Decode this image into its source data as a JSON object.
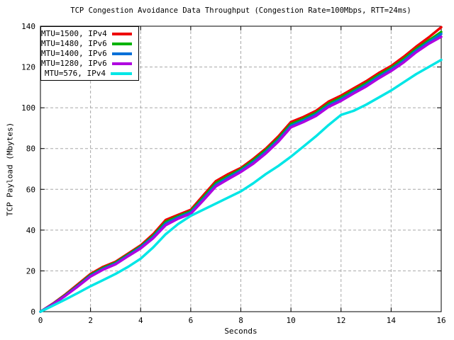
{
  "chart_data": {
    "type": "line",
    "title": "TCP Congestion Avoidance Data Throughput (Congestion Rate=100Mbps, RTT=24ms)",
    "xlabel": "Seconds",
    "ylabel": "TCP Payload (Mbytes)",
    "xlim": [
      0,
      16
    ],
    "ylim": [
      0,
      140
    ],
    "xticks": [
      0,
      2,
      4,
      6,
      8,
      10,
      12,
      14,
      16
    ],
    "yticks": [
      0,
      20,
      40,
      60,
      80,
      100,
      120,
      140
    ],
    "grid": true,
    "grid_color": "#a8a8a8",
    "legend_position": "top-left",
    "x": [
      0,
      0.5,
      1,
      1.5,
      2,
      2.5,
      3,
      3.5,
      4,
      4.5,
      5,
      5.5,
      6,
      6.5,
      7,
      7.5,
      8,
      8.5,
      9,
      9.5,
      10,
      10.5,
      11,
      11.5,
      12,
      12.5,
      13,
      13.5,
      14,
      14.5,
      15,
      15.5,
      16
    ],
    "series": [
      {
        "name": "MTU=1500, IPv4",
        "color": "#ee0000",
        "values": [
          0,
          4,
          8.5,
          13.5,
          18.5,
          22,
          24.5,
          28.5,
          32.5,
          38,
          45,
          47.5,
          50,
          57,
          64,
          67.5,
          70.5,
          75,
          80,
          86,
          93,
          95.5,
          98.5,
          103,
          106,
          109.5,
          113,
          117,
          120.5,
          125,
          130,
          134.5,
          139.5
        ]
      },
      {
        "name": "MTU=1480, IPv6",
        "color": "#00b400",
        "values": [
          0,
          3.8,
          8.2,
          13,
          18,
          21.4,
          24,
          28,
          32,
          37.2,
          44,
          46.8,
          49.3,
          56,
          63,
          66.5,
          69.8,
          74.2,
          79.2,
          85,
          92,
          94.5,
          97.5,
          102,
          105,
          108.5,
          112,
          116,
          119.5,
          123.8,
          128.8,
          133,
          137.2
        ]
      },
      {
        "name": "MTU=1400, IPv6",
        "color": "#0070d8",
        "values": [
          0,
          3.7,
          8,
          12.7,
          17.6,
          21,
          23.6,
          27.6,
          31.6,
          36.6,
          43.2,
          46.2,
          48.7,
          55.2,
          62.2,
          65.8,
          69.2,
          73.4,
          78.4,
          84.2,
          91.2,
          93.8,
          96.8,
          101.2,
          104.2,
          107.8,
          111.2,
          115.2,
          118.8,
          123,
          128,
          132.2,
          136.2
        ]
      },
      {
        "name": "MTU=1280, IPv6",
        "color": "#b000e0",
        "values": [
          0,
          3.6,
          7.8,
          12.4,
          17.2,
          20.6,
          23.2,
          27.2,
          31,
          36,
          42.4,
          45.6,
          48,
          54.5,
          61.4,
          65,
          68.5,
          72.6,
          77.6,
          83.4,
          90.4,
          93,
          96,
          100.4,
          103.4,
          107,
          110.4,
          114.4,
          118,
          122.2,
          127.2,
          131.4,
          134.8
        ]
      },
      {
        "name": "MTU=576, IPv4",
        "color": "#00e6e6",
        "values": [
          0,
          3,
          6,
          9.2,
          12.5,
          15.5,
          18.5,
          22,
          26,
          31.5,
          38,
          43,
          47,
          50,
          53,
          56,
          59,
          63,
          67.5,
          71.5,
          76,
          81,
          86,
          91.5,
          96.5,
          98.5,
          101.5,
          105,
          108.5,
          112.5,
          116.5,
          120,
          123.5
        ]
      }
    ]
  }
}
